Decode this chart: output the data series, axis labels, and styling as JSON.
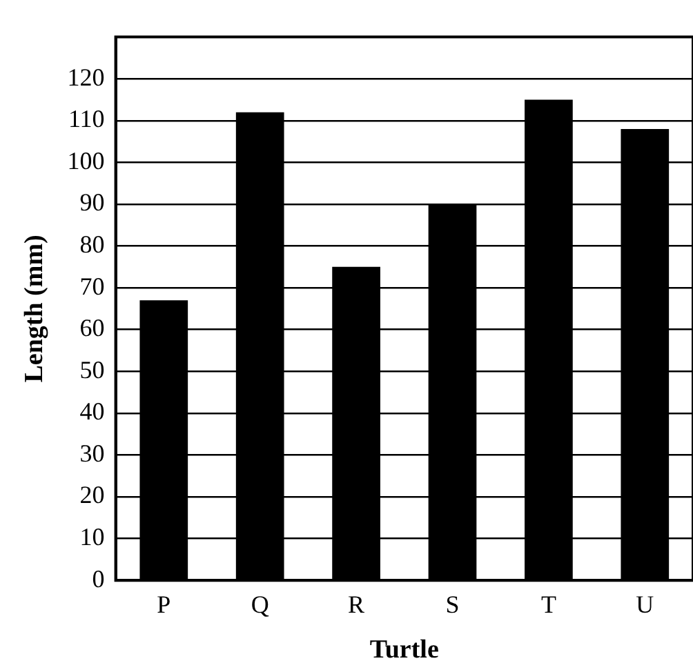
{
  "chart_data": {
    "type": "bar",
    "xlabel": "Turtle",
    "ylabel": "Length (mm)",
    "categories": [
      "P",
      "Q",
      "R",
      "S",
      "T",
      "U"
    ],
    "values": [
      67,
      112,
      75,
      90,
      115,
      108
    ],
    "color": "#000000",
    "ylim": [
      0,
      130
    ],
    "yticks": [
      0,
      10,
      20,
      30,
      40,
      50,
      60,
      70,
      80,
      90,
      100,
      110,
      120
    ],
    "grid": "y",
    "legend": false
  }
}
